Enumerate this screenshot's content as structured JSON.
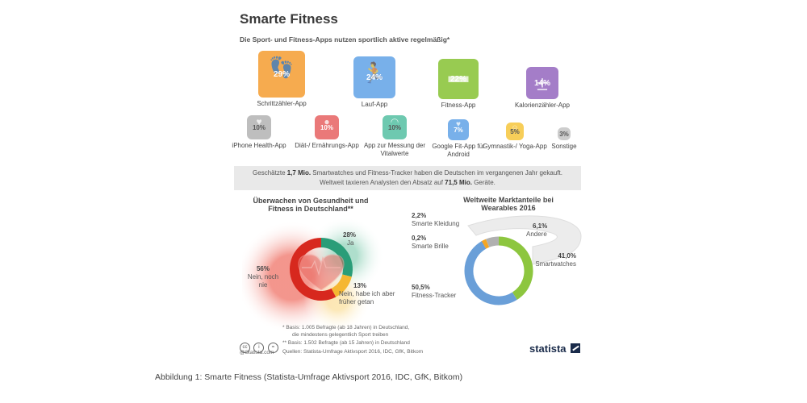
{
  "header": {
    "title": "Smarte Fitness",
    "subtitle": "Die Sport- und Fitness-Apps nutzen sportlich aktive regelmäßig*"
  },
  "apps_row1": [
    {
      "pct": "29%",
      "label": "Schrittzähler-App",
      "color": "#f6a23c",
      "icon": "footprints-icon"
    },
    {
      "pct": "24%",
      "label": "Lauf-App",
      "color": "#6aa8e8",
      "icon": "runner-icon"
    },
    {
      "pct": "22%",
      "label": "Fitness-App",
      "color": "#8dc63f",
      "icon": "dumbbell-icon"
    },
    {
      "pct": "14%",
      "label": "Kalorienzähler-App",
      "color": "#9b6fc3",
      "icon": "plus-minus-icon"
    }
  ],
  "apps_row2": [
    {
      "pct": "10%",
      "label": "iPhone Health-App",
      "color": "#b8b8b8",
      "icon": "heart-icon"
    },
    {
      "pct": "10%",
      "label": "Diät-/ Ernährungs-App",
      "color": "#e86b6b",
      "icon": "apple-icon"
    },
    {
      "pct": "10%",
      "label": "App zur Messung der Vitalwerte",
      "color": "#5fc4a8",
      "icon": "gauge-icon"
    },
    {
      "pct": "7%",
      "label": "Google Fit-App für Android",
      "color": "#6aa8e8",
      "icon": "heart-icon"
    },
    {
      "pct": "5%",
      "label": "Gymnastik-/ Yoga-App",
      "color": "#f7c948",
      "icon": "yoga-icon"
    },
    {
      "pct": "3%",
      "label": "Sonstige",
      "color": "#c8c8c8",
      "icon": ""
    }
  ],
  "banner": {
    "line1_pre": "Geschätzte ",
    "line1_bold": "1,7 Mio.",
    "line1_post": " Smartwatches und Fitness-Tracker haben die Deutschen im vergangenen Jahr gekauft.",
    "line2_pre": "Weltweit taxieren Analysten den Absatz auf ",
    "line2_bold": "71,5 Mio.",
    "line2_post": " Geräte."
  },
  "chart_data": [
    {
      "type": "pie",
      "title": "Überwachen von Gesundheit und Fitness in Deutschland**",
      "slices": [
        {
          "label": "Ja",
          "value": 28,
          "display": "28%",
          "color": "#2a9d78"
        },
        {
          "label": "Nein, habe ich aber früher getan",
          "value": 13,
          "display": "13%",
          "color": "#f5b731"
        },
        {
          "label": "Nein, noch nie",
          "value": 56,
          "display": "56%",
          "color": "#d7281e"
        }
      ]
    },
    {
      "type": "pie",
      "title": "Weltweite Marktanteile bei Wearables 2016",
      "slices": [
        {
          "label": "Smartwatches",
          "value": 41.0,
          "display": "41,0%",
          "color": "#8dc63f"
        },
        {
          "label": "Fitness-Tracker",
          "value": 50.5,
          "display": "50,5%",
          "color": "#6a9fd8"
        },
        {
          "label": "Smarte Brille",
          "value": 0.2,
          "display": "0,2%",
          "color": "#3b6bb5"
        },
        {
          "label": "Smarte Kleidung",
          "value": 2.2,
          "display": "2,2%",
          "color": "#f5a623"
        },
        {
          "label": "Andere",
          "value": 6.1,
          "display": "6,1%",
          "color": "#b0b0b0"
        }
      ]
    }
  ],
  "notes": {
    "n1a": "*  Basis: 1.005 Befragte (ab 18 Jahren) in Deutschland,",
    "n1b": "die mindestens gelegentlich Sport treiben",
    "n2": "** Basis: 1.502 Befragte (ab 15 Jahren) in Deutschland",
    "source": "Quellen: Statista-Umfrage Aktivsport 2016, IDC, GfK, Bitkom",
    "cc": "@Statista.com"
  },
  "brand": "statista",
  "caption": "Abbildung 1: Smarte Fitness (Statista-Umfrage Aktivsport 2016, IDC, GfK, Bitkom)"
}
